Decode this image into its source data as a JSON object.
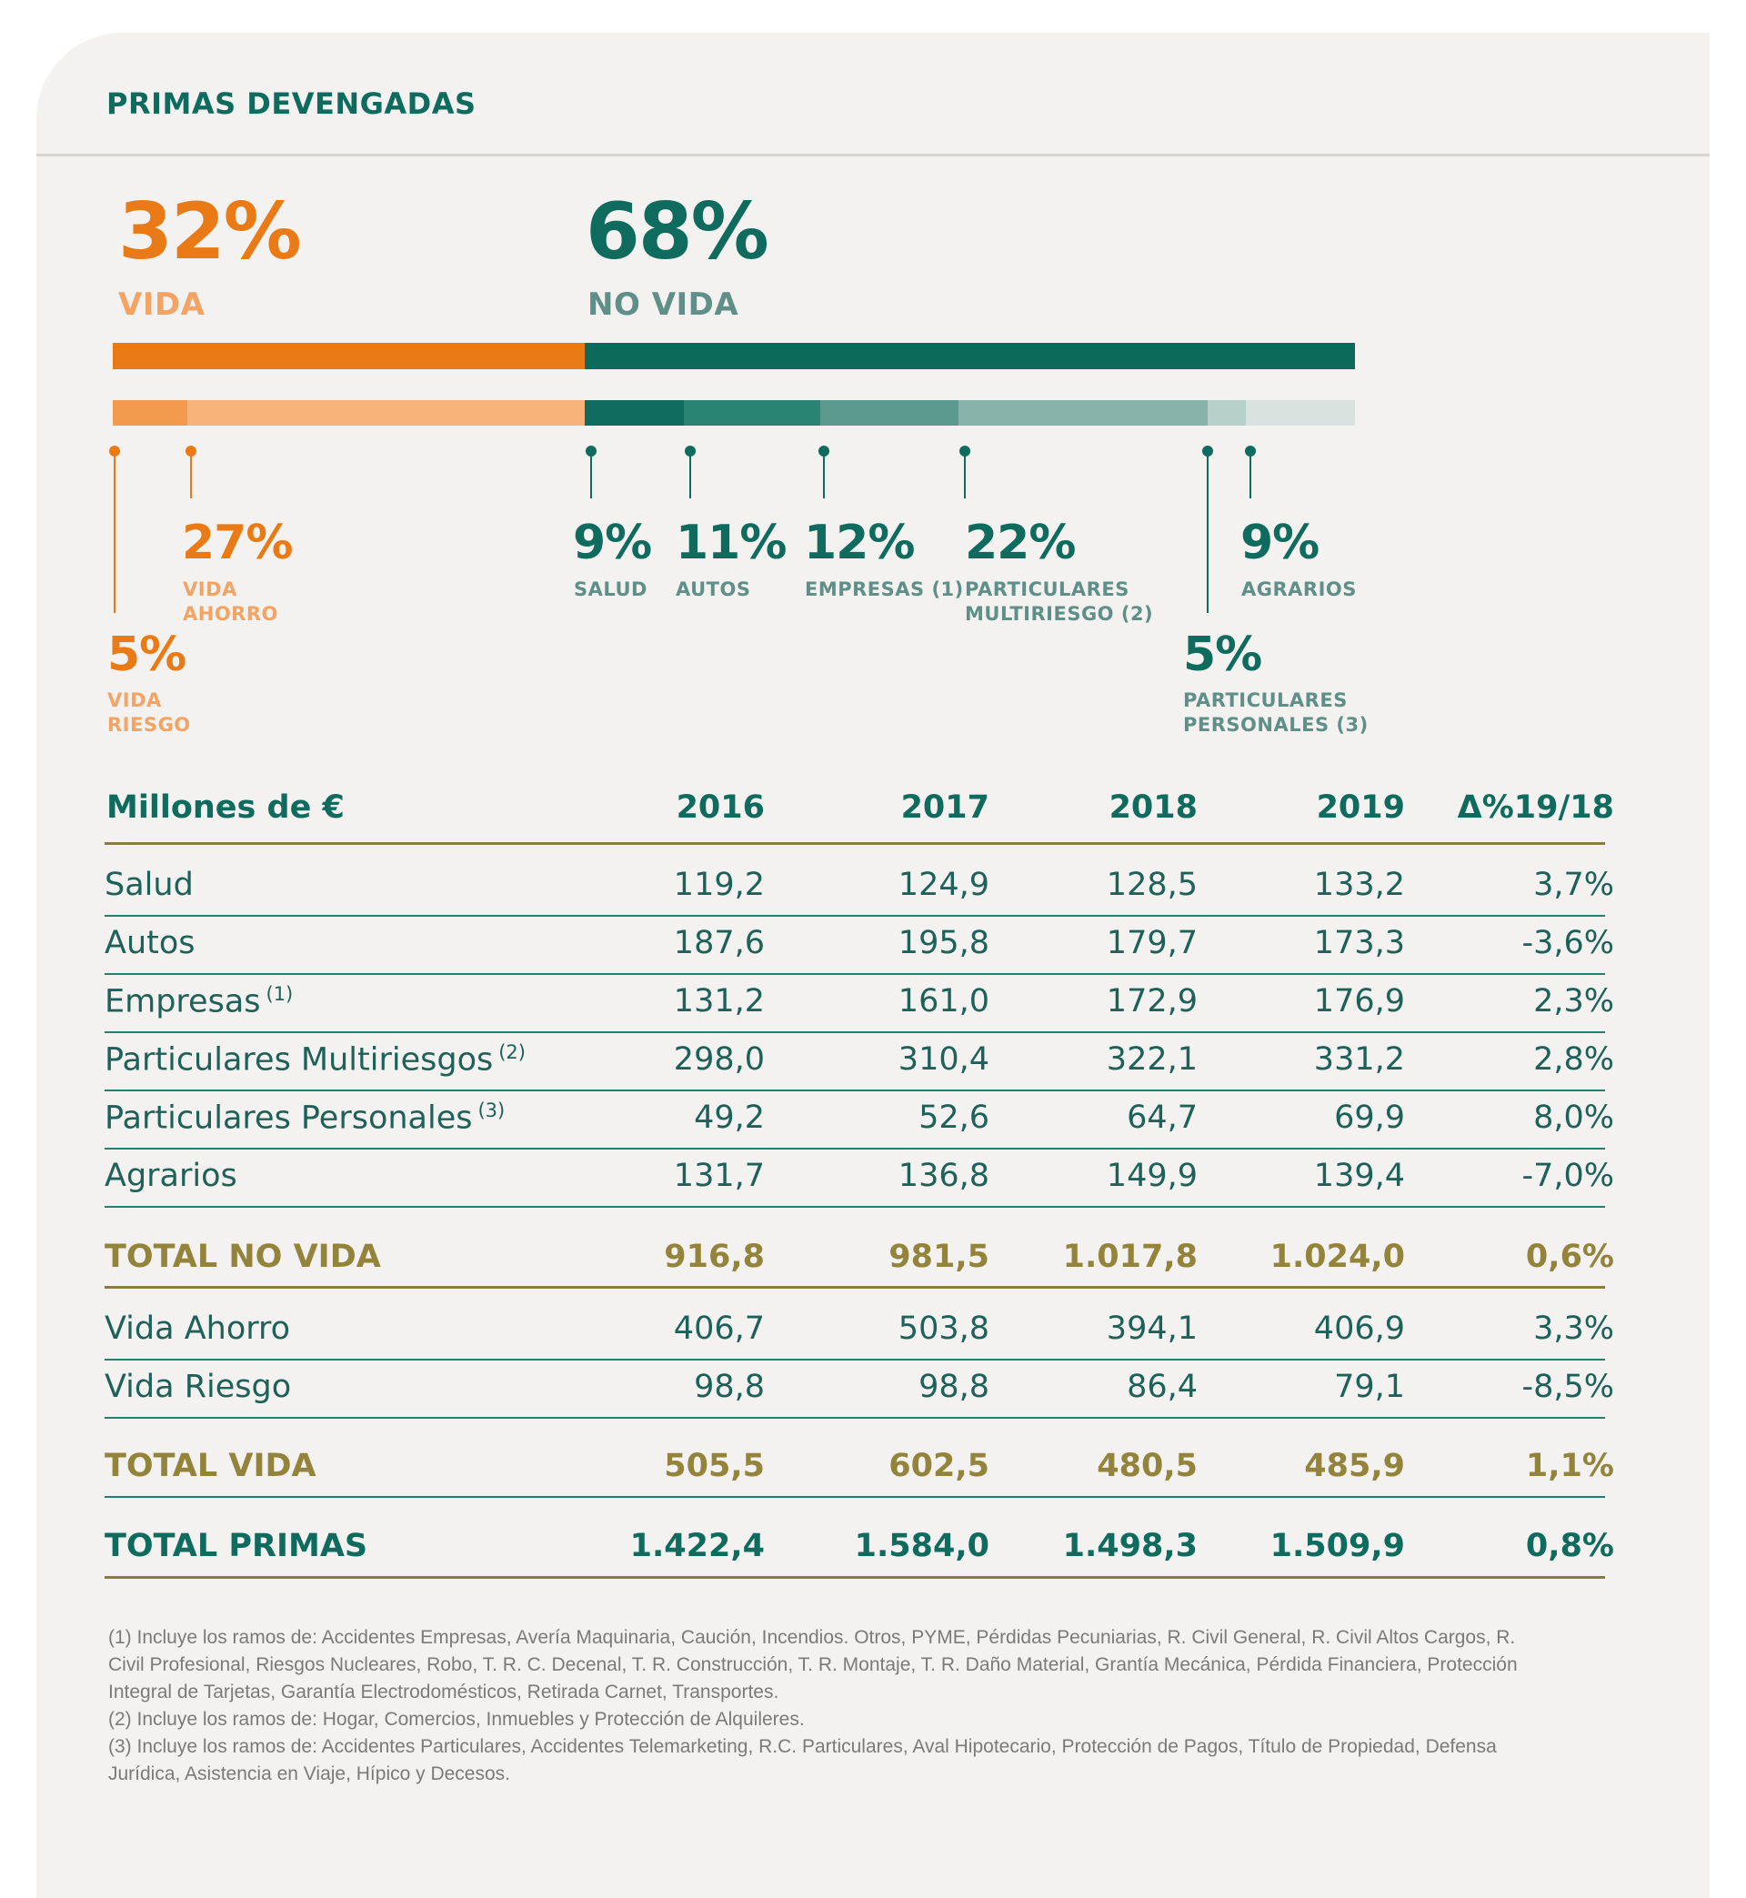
{
  "title": "PRIMAS DEVENGADAS",
  "summary": {
    "vida": {
      "pct": "32%",
      "label": "VIDA"
    },
    "no_vida": {
      "pct": "68%",
      "label": "NO VIDA"
    }
  },
  "colors": {
    "vida": "#ea7a16",
    "vida_light": "#f3a464",
    "no_vida": "#0e6b5e",
    "gold": "#94833a",
    "rule": "#d7d6d3"
  },
  "breakdown": [
    {
      "pct": "5%",
      "label": "VIDA RIESGO",
      "value": 5,
      "color": "#f29a4e"
    },
    {
      "pct": "27%",
      "label": "VIDA AHORRO",
      "value": 27,
      "color": "#f7b37a"
    },
    {
      "pct": "9%",
      "label": "SALUD",
      "value": 9,
      "color": "#0f6b5d"
    },
    {
      "pct": "11%",
      "label": "AUTOS",
      "value": 11,
      "color": "#2a8474"
    },
    {
      "pct": "12%",
      "label": "EMPRESAS (1)",
      "value": 12,
      "color": "#5c9a8f"
    },
    {
      "pct": "22%",
      "label": "PARTICULARES MULTIRIESGO (2)",
      "value": 22,
      "color": "#88b3aa"
    },
    {
      "pct": "5%",
      "label": "PARTICULARES PERSONALES (3)",
      "value": 5,
      "color": "#b7d0ca"
    },
    {
      "pct": "9%",
      "label": "AGRARIOS",
      "value": 9,
      "color": "#d8e3e0"
    }
  ],
  "table": {
    "header": [
      "Millones de €",
      "2016",
      "2017",
      "2018",
      "2019",
      "Δ%19/18"
    ],
    "rows": [
      {
        "label": "Salud",
        "sup": "",
        "values": [
          "119,2",
          "124,9",
          "128,5",
          "133,2",
          "3,7%"
        ]
      },
      {
        "label": "Autos",
        "sup": "",
        "values": [
          "187,6",
          "195,8",
          "179,7",
          "173,3",
          "-3,6%"
        ]
      },
      {
        "label": "Empresas",
        "sup": "(1)",
        "values": [
          "131,2",
          "161,0",
          "172,9",
          "176,9",
          "2,3%"
        ]
      },
      {
        "label": "Particulares Multiriesgos",
        "sup": "(2)",
        "values": [
          "298,0",
          "310,4",
          "322,1",
          "331,2",
          "2,8%"
        ]
      },
      {
        "label": "Particulares Personales",
        "sup": "(3)",
        "values": [
          "49,2",
          "52,6",
          "64,7",
          "69,9",
          "8,0%"
        ]
      },
      {
        "label": "Agrarios",
        "sup": "",
        "values": [
          "131,7",
          "136,8",
          "149,9",
          "139,4",
          "-7,0%"
        ]
      }
    ],
    "total_no_vida": {
      "label": "TOTAL NO VIDA",
      "values": [
        "916,8",
        "981,5",
        "1.017,8",
        "1.024,0",
        "0,6%"
      ]
    },
    "vida_rows": [
      {
        "label": "Vida Ahorro",
        "values": [
          "406,7",
          "503,8",
          "394,1",
          "406,9",
          "3,3%"
        ]
      },
      {
        "label": "Vida Riesgo",
        "values": [
          "98,8",
          "98,8",
          "86,4",
          "79,1",
          "-8,5%"
        ]
      }
    ],
    "total_vida": {
      "label": "TOTAL VIDA",
      "values": [
        "505,5",
        "602,5",
        "480,5",
        "485,9",
        "1,1%"
      ]
    },
    "total_primas": {
      "label": "TOTAL PRIMAS",
      "values": [
        "1.422,4",
        "1.584,0",
        "1.498,3",
        "1.509,9",
        "0,8%"
      ]
    }
  },
  "notes": [
    "(1) Incluye los ramos de: Accidentes Empresas, Avería Maquinaria, Caución, Incendios. Otros, PYME, Pérdidas Pecuniarias, R. Civil General, R. Civil Altos Cargos, R. Civil Profesional, Riesgos Nucleares, Robo, T. R. C. Decenal, T. R. Construcción, T. R. Montaje, T. R. Daño Material, Grantía Mecánica, Pérdida Financiera, Protección Integral de Tarjetas, Garantía Electrodomésticos, Retirada Carnet, Transportes.",
    "(2) Incluye los ramos de: Hogar, Comercios, Inmuebles y Protección de Alquileres.",
    "(3) Incluye los ramos de: Accidentes Particulares, Accidentes Telemarketing, R.C. Particulares, Aval Hipotecario, Protección de Pagos, Título de Propiedad, Defensa Jurídica, Asistencia en Viaje, Hípico y Decesos."
  ],
  "chart_data": [
    {
      "type": "bar",
      "categories": [
        "VIDA",
        "NO VIDA"
      ],
      "values": [
        32,
        68
      ]
    },
    {
      "type": "bar",
      "categories": [
        "VIDA RIESGO",
        "VIDA AHORRO",
        "SALUD",
        "AUTOS",
        "EMPRESAS (1)",
        "PARTICULARES MULTIRIESGO (2)",
        "PARTICULARES PERSONALES (3)",
        "AGRARIOS"
      ],
      "values": [
        5,
        27,
        9,
        11,
        12,
        22,
        5,
        9
      ]
    },
    {
      "type": "table",
      "columns": [
        "Millones de €",
        "2016",
        "2017",
        "2018",
        "2019",
        "Δ%19/18"
      ],
      "rows": [
        [
          "Salud",
          119.2,
          124.9,
          128.5,
          133.2,
          "3,7%"
        ],
        [
          "Autos",
          187.6,
          195.8,
          179.7,
          173.3,
          "-3,6%"
        ],
        [
          "Empresas",
          131.2,
          161.0,
          172.9,
          176.9,
          "2,3%"
        ],
        [
          "Particulares Multiriesgos",
          298.0,
          310.4,
          322.1,
          331.2,
          "2,8%"
        ],
        [
          "Particulares Personales",
          49.2,
          52.6,
          64.7,
          69.9,
          "8,0%"
        ],
        [
          "Agrarios",
          131.7,
          136.8,
          149.9,
          139.4,
          "-7,0%"
        ],
        [
          "TOTAL NO VIDA",
          916.8,
          981.5,
          1017.8,
          1024.0,
          "0,6%"
        ],
        [
          "Vida Ahorro",
          406.7,
          503.8,
          394.1,
          406.9,
          "3,3%"
        ],
        [
          "Vida Riesgo",
          98.8,
          98.8,
          86.4,
          79.1,
          "-8,5%"
        ],
        [
          "TOTAL VIDA",
          505.5,
          602.5,
          480.5,
          485.9,
          "1,1%"
        ],
        [
          "TOTAL PRIMAS",
          1422.4,
          1584.0,
          1498.3,
          1509.9,
          "0,8%"
        ]
      ]
    }
  ]
}
